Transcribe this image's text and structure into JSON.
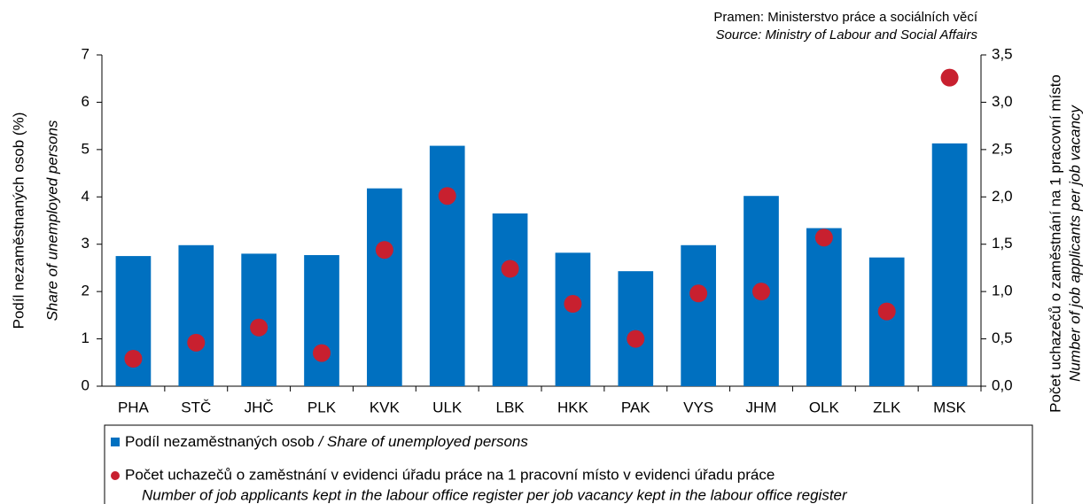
{
  "chart_data": {
    "type": "bar_dot",
    "source_cz": "Pramen: Ministerstvo práce a sociálních věcí",
    "source_en": "Source: Ministry of Labour and Social Affairs",
    "ylabel": "Podíl nezaměstnaných osob (%)",
    "ylabel_en": "Share of unemployed persons",
    "y2label": "Počet uchazečů o zaměstnání na 1 pracovní místo",
    "y2label_en": "Number of job applicants per job vacancy",
    "categories": [
      "PHA",
      "STČ",
      "JHČ",
      "PLK",
      "KVK",
      "ULK",
      "LBK",
      "HKK",
      "PAK",
      "VYS",
      "JHM",
      "OLK",
      "ZLK",
      "MSK"
    ],
    "series": [
      {
        "name": "Podíl nezaměstnaných osob",
        "name_en": "/ Share of unemployed persons",
        "color": "#0070c0",
        "axis": "y",
        "values": [
          2.75,
          2.98,
          2.8,
          2.77,
          4.18,
          5.08,
          3.65,
          2.82,
          2.43,
          2.98,
          4.02,
          3.34,
          2.72,
          5.13
        ]
      },
      {
        "name": "Počet uchazečů o zaměstnání v evidenci úřadu práce na 1 pracovní místo v evidenci úřadu práce",
        "name_en": "Number of job applicants kept in the labour office register per job vacancy kept in the labour office register",
        "color": "#c8202f",
        "axis": "y2",
        "values": [
          0.29,
          0.46,
          0.62,
          0.35,
          1.44,
          2.01,
          1.24,
          0.87,
          0.5,
          0.98,
          1.0,
          1.57,
          0.79,
          3.26
        ]
      }
    ],
    "ylim": [
      0,
      7
    ],
    "yticks": [
      0,
      1,
      2,
      3,
      4,
      5,
      6,
      7
    ],
    "y2lim": [
      0,
      3.5
    ],
    "y2ticks": [
      {
        "value": 0,
        "label": "0,0"
      },
      {
        "value": 0.5,
        "label": "0,5"
      },
      {
        "value": 1,
        "label": "1,0"
      },
      {
        "value": 1.5,
        "label": "1,5"
      },
      {
        "value": 2,
        "label": "2,0"
      },
      {
        "value": 2.5,
        "label": "2,5"
      },
      {
        "value": 3,
        "label": "3,0"
      },
      {
        "value": 3.5,
        "label": "3,5"
      }
    ],
    "grid": false
  }
}
